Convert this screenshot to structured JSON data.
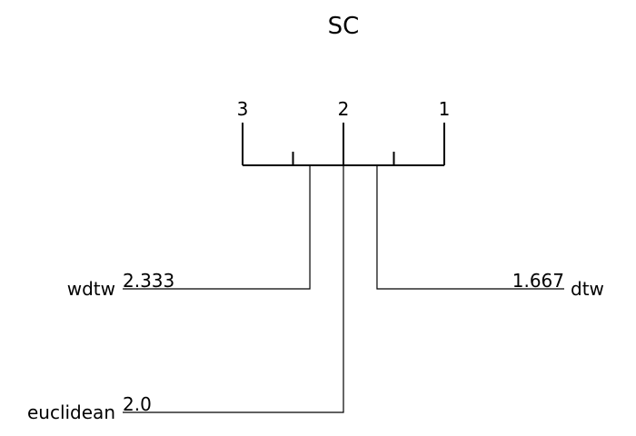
{
  "chart_data": {
    "type": "critical-difference-diagram",
    "title": "SC",
    "axis": {
      "range": [
        3,
        1
      ],
      "major_ticks": [
        {
          "value": 3,
          "label": "3"
        },
        {
          "value": 2,
          "label": "2"
        },
        {
          "value": 1,
          "label": "1"
        }
      ],
      "minor_ticks": [
        2.5,
        1.5
      ]
    },
    "methods": [
      {
        "name": "wdtw",
        "rank": 2.333,
        "rank_label": "2.333",
        "side": "left"
      },
      {
        "name": "dtw",
        "rank": 1.667,
        "rank_label": "1.667",
        "side": "right"
      },
      {
        "name": "euclidean",
        "rank": 2.0,
        "rank_label": "2.0",
        "side": "left"
      }
    ]
  }
}
